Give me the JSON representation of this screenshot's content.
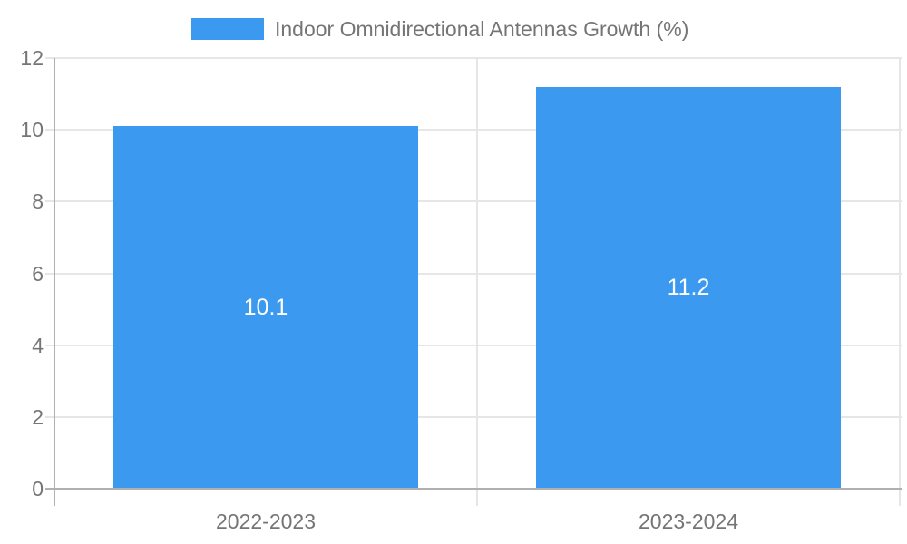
{
  "chart_data": {
    "type": "bar",
    "title": "",
    "categories": [
      "2022-2023",
      "2023-2024"
    ],
    "series": [
      {
        "name": "Indoor Omnidirectional Antennas Growth (%)",
        "values": [
          10.1,
          11.2
        ],
        "data_labels": [
          "10.1",
          "11.2"
        ]
      }
    ],
    "xlabel": "",
    "ylabel": "",
    "ylim": [
      0,
      12
    ],
    "yticks": [
      0,
      2,
      4,
      6,
      8,
      10,
      12
    ],
    "grid": true,
    "legend_position": "top-center",
    "colors": {
      "bar": "#3b9af0",
      "bar_label_text": "#ffffff",
      "axis_text": "#757575",
      "gridline": "#e6e6e6",
      "axis_line": "#b0b0b0",
      "background": "#ffffff"
    }
  }
}
